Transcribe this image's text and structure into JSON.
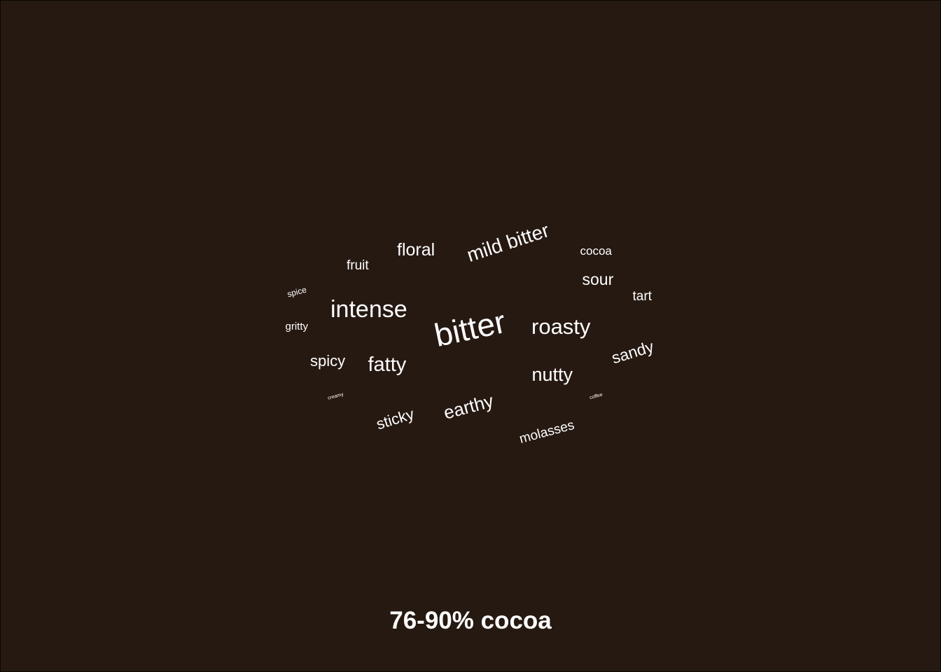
{
  "caption": "76-90% cocoa",
  "colors": {
    "background": "#261912",
    "text": "#ffffff"
  },
  "chart_data": {
    "type": "wordcloud",
    "title": "76-90% cocoa",
    "words": [
      {
        "text": "bitter",
        "weight": 100
      },
      {
        "text": "intense",
        "weight": 72
      },
      {
        "text": "roasty",
        "weight": 64
      },
      {
        "text": "mild bitter",
        "weight": 58
      },
      {
        "text": "fatty",
        "weight": 58
      },
      {
        "text": "earthy",
        "weight": 54
      },
      {
        "text": "nutty",
        "weight": 52
      },
      {
        "text": "floral",
        "weight": 50
      },
      {
        "text": "sour",
        "weight": 44
      },
      {
        "text": "sandy",
        "weight": 44
      },
      {
        "text": "spicy",
        "weight": 41
      },
      {
        "text": "sticky",
        "weight": 40
      },
      {
        "text": "molasses",
        "weight": 36
      },
      {
        "text": "fruit",
        "weight": 35
      },
      {
        "text": "tart",
        "weight": 34
      },
      {
        "text": "cocoa",
        "weight": 31
      },
      {
        "text": "gritty",
        "weight": 28
      },
      {
        "text": "spice",
        "weight": 22
      },
      {
        "text": "creamy",
        "weight": 13
      },
      {
        "text": "coffee",
        "weight": 13
      }
    ]
  }
}
